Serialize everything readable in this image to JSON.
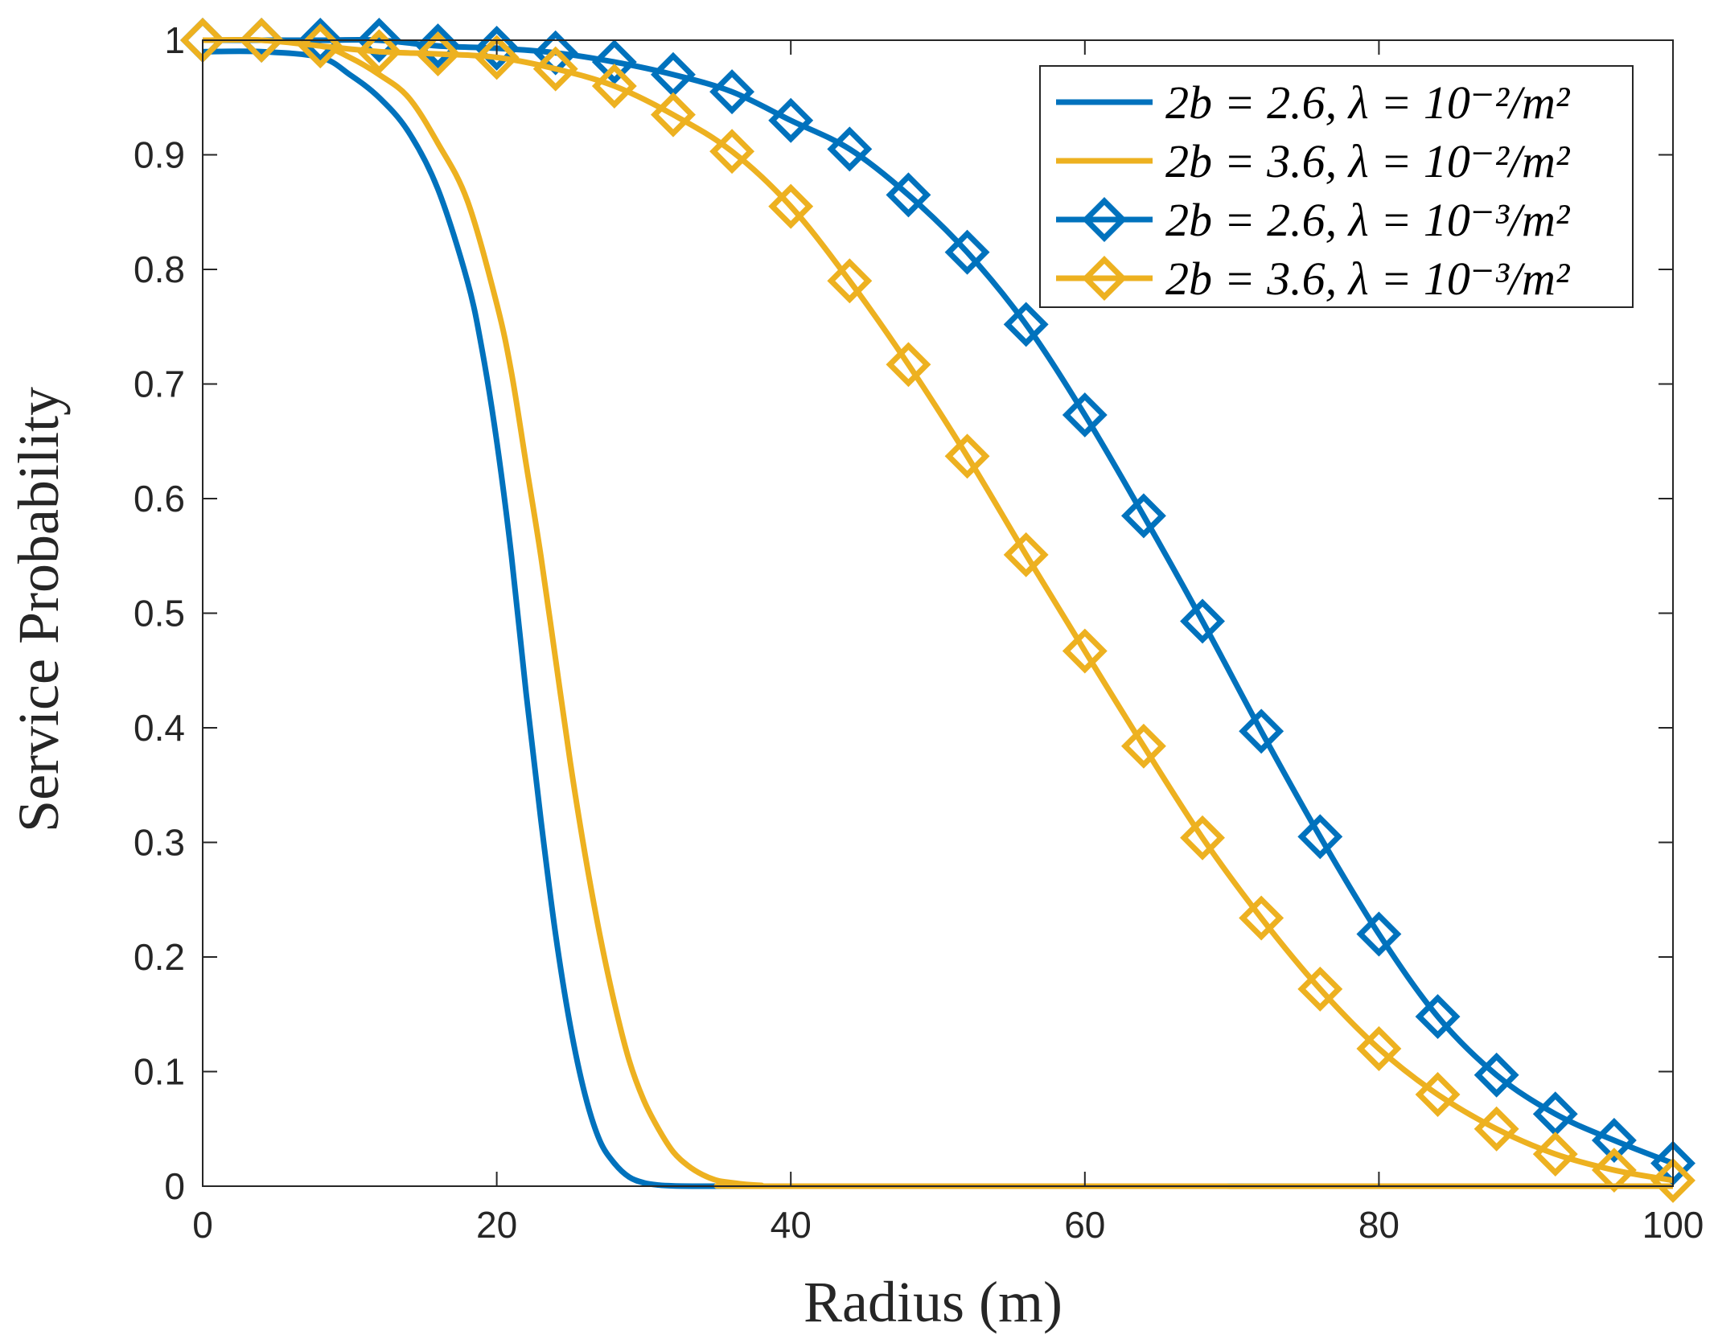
{
  "chart_data": {
    "type": "line",
    "title": "",
    "xlabel": "Radius (m)",
    "ylabel": "Service Probability",
    "xlim": [
      0,
      100
    ],
    "ylim": [
      0,
      1
    ],
    "xticks": [
      0,
      20,
      40,
      60,
      80,
      100
    ],
    "xtick_labels": [
      "0",
      "20",
      "40",
      "60",
      "80",
      "100"
    ],
    "yticks": [
      0,
      0.1,
      0.2,
      0.3,
      0.4,
      0.5,
      0.6,
      0.7,
      0.8,
      0.9,
      1
    ],
    "ytick_labels": [
      "0",
      "0.1",
      "0.2",
      "0.3",
      "0.4",
      "0.5",
      "0.6",
      "0.7",
      "0.8",
      "0.9",
      "1"
    ],
    "grid": false,
    "legend_position": "top-right",
    "series": [
      {
        "name": "2b = 2.6, λ = 10⁻²/m²",
        "legend_label": "2b = 2.6, λ = 10⁻²/m²",
        "color": "#0072BD",
        "marker": "none",
        "x": [
          0,
          4,
          8,
          10,
          12,
          14,
          16,
          18,
          19,
          20,
          21,
          22,
          23,
          24,
          25,
          26,
          27,
          28,
          29,
          30,
          31,
          32,
          34,
          36,
          40,
          100
        ],
        "y": [
          0.99,
          0.99,
          0.985,
          0.97,
          0.95,
          0.92,
          0.87,
          0.79,
          0.73,
          0.65,
          0.55,
          0.43,
          0.32,
          0.22,
          0.14,
          0.08,
          0.04,
          0.02,
          0.008,
          0.003,
          0.001,
          0.0003,
          0,
          0,
          0,
          0
        ]
      },
      {
        "name": "2b = 3.6, λ = 10⁻²/m²",
        "legend_label": "2b = 3.6, λ = 10⁻²/m²",
        "color": "#EDB120",
        "marker": "none",
        "x": [
          0,
          4,
          8,
          10,
          12,
          14,
          16,
          18,
          20,
          21,
          22,
          23,
          24,
          25,
          26,
          27,
          28,
          29,
          30,
          31,
          32,
          33,
          34,
          35,
          36,
          37,
          38,
          40,
          100
        ],
        "y": [
          1.0,
          1.0,
          0.995,
          0.985,
          0.97,
          0.95,
          0.91,
          0.86,
          0.77,
          0.71,
          0.63,
          0.55,
          0.46,
          0.37,
          0.29,
          0.22,
          0.16,
          0.11,
          0.075,
          0.05,
          0.03,
          0.018,
          0.01,
          0.005,
          0.003,
          0.0015,
          0.0007,
          0,
          0
        ]
      },
      {
        "name": "2b = 2.6, λ = 10⁻³/m²",
        "legend_label": "2b = 2.6, λ = 10⁻³/m²",
        "color": "#0072BD",
        "marker": "diamond",
        "x": [
          0,
          4,
          8,
          12,
          16,
          20,
          24,
          28,
          32,
          36,
          40,
          44,
          48,
          52,
          56,
          60,
          64,
          68,
          72,
          76,
          80,
          84,
          88,
          92,
          96,
          100
        ],
        "y": [
          1.0,
          1.0,
          1.0,
          1.0,
          0.995,
          0.993,
          0.989,
          0.981,
          0.97,
          0.955,
          0.93,
          0.905,
          0.865,
          0.815,
          0.752,
          0.673,
          0.585,
          0.493,
          0.397,
          0.305,
          0.22,
          0.148,
          0.097,
          0.063,
          0.04,
          0.02
        ]
      },
      {
        "name": "2b = 3.6, λ = 10⁻³/m²",
        "legend_label": "2b = 3.6, λ = 10⁻³/m²",
        "color": "#EDB120",
        "marker": "diamond",
        "x": [
          0,
          4,
          8,
          12,
          16,
          20,
          24,
          28,
          32,
          36,
          40,
          44,
          48,
          52,
          56,
          60,
          64,
          68,
          72,
          76,
          80,
          84,
          88,
          92,
          96,
          100
        ],
        "y": [
          1.0,
          1.0,
          0.995,
          0.99,
          0.988,
          0.985,
          0.975,
          0.96,
          0.935,
          0.903,
          0.855,
          0.79,
          0.717,
          0.637,
          0.551,
          0.467,
          0.384,
          0.304,
          0.234,
          0.172,
          0.12,
          0.08,
          0.05,
          0.028,
          0.014,
          0.005
        ]
      }
    ]
  }
}
